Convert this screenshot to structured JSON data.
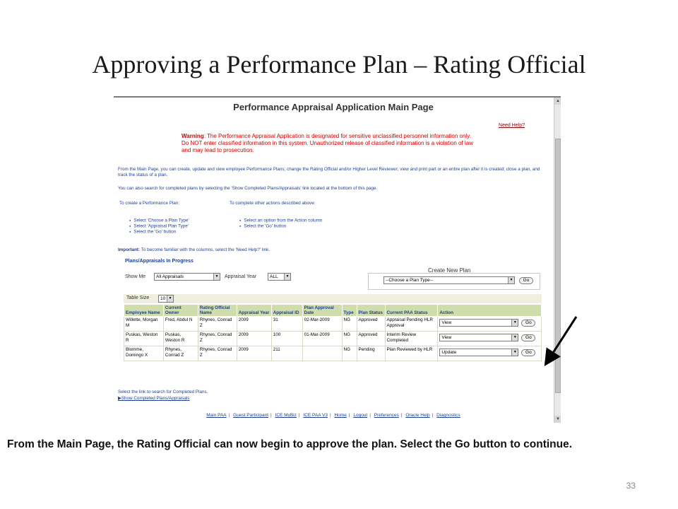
{
  "slide": {
    "title": "Approving a Performance Plan – Rating Official",
    "caption": "From the Main Page, the Rating Official can now begin to approve the plan. Select the Go button to continue.",
    "page_number": "33"
  },
  "app": {
    "title": "Performance Appraisal Application Main Page",
    "need_help": "Need Help?",
    "warning_label": "Warning",
    "warning_text": ": The Performance Appraisal Application is designated for sensitive unclassified personnel information only. Do NOT enter classified information in this system. Unauthorized release of classified information is a violation of law and may lead to prosecution.",
    "intro_1": "From the Main Page, you can create, update and view employee Performance Plans; change the Rating Official and/or Higher Level Reviewer; view and print part or an entire plan after it is created; close a plan, and track the status of a plan.",
    "intro_2": "You can also search for completed plans by selecting the 'Show Completed Plans/Appraisals' link located at the bottom of this page.",
    "create_heading": "To create a Performance Plan:",
    "create_steps": [
      "Select 'Choose a Plan Type'",
      "Select 'Appraisal Plan Type'",
      "Select the 'Go' button"
    ],
    "other_heading": "To complete other actions described above:",
    "other_steps": [
      "Select an option from the Action column",
      "Select the 'Go' button"
    ],
    "important_label": "Important:",
    "important_text": " To become familiar with the columns, select the 'Need Help?' link.",
    "section_title": "Plans/Appraisals In Progress",
    "show_me_label": "Show Me",
    "show_me_value": "All Appraisals",
    "appraisal_year_label": "Appraisal Year",
    "appraisal_year_value": "ALL",
    "create_new_plan_label": "Create New Plan",
    "plan_type_value": "--Choose a Plan Type--",
    "go_label": "Go",
    "table_size_label": "Table Size",
    "table_size_value": "10",
    "columns": [
      "Employee Name",
      "Current Owner",
      "Rating Official Name",
      "Appraisal Year",
      "Appraisal ID",
      "Plan Approval Date",
      "Type",
      "Plan Status",
      "Current PAA Status",
      "Action"
    ],
    "rows": [
      {
        "employee": "Willette, Morgan M",
        "owner": "Fred, Abdul N",
        "rating_official": "Rhynes, Conrad Z",
        "year": "2009",
        "id": "31",
        "approval_date": "02-Mar-2009",
        "type": "NG",
        "plan_status": "Approved",
        "paa_status": "Appraisal Pending HLR Approval",
        "action": "View"
      },
      {
        "employee": "Puskas, Weston R",
        "owner": "Puskas, Weston R",
        "rating_official": "Rhynes, Conrad Z",
        "year": "2009",
        "id": "100",
        "approval_date": "01-Mar-2009",
        "type": "NG",
        "plan_status": "Approved",
        "paa_status": "Interim Review Completed",
        "action": "View"
      },
      {
        "employee": "Blomme, Domingo X",
        "owner": "Rhynes, Conrad Z",
        "rating_official": "Rhynes, Conrad Z",
        "year": "2009",
        "id": "211",
        "approval_date": "",
        "type": "NG",
        "plan_status": "Pending",
        "paa_status": "Plan Reviewed by HLR",
        "action": "Update"
      }
    ],
    "completed_note": "Select the link to search for Completed Plans.",
    "completed_link": "Show Completed Plans/Appraisals",
    "footer_links": [
      "Main PAA",
      "Guest Participant",
      "ICE MyBiz",
      "ICE PAA V3",
      "Home",
      "Logout",
      "Preferences",
      "Oracle Help",
      "Diagnostics"
    ]
  },
  "colors": {
    "accent_blue": "#1f3f8f",
    "warning_red": "#cc0000",
    "header_green": "#cfdcab"
  }
}
